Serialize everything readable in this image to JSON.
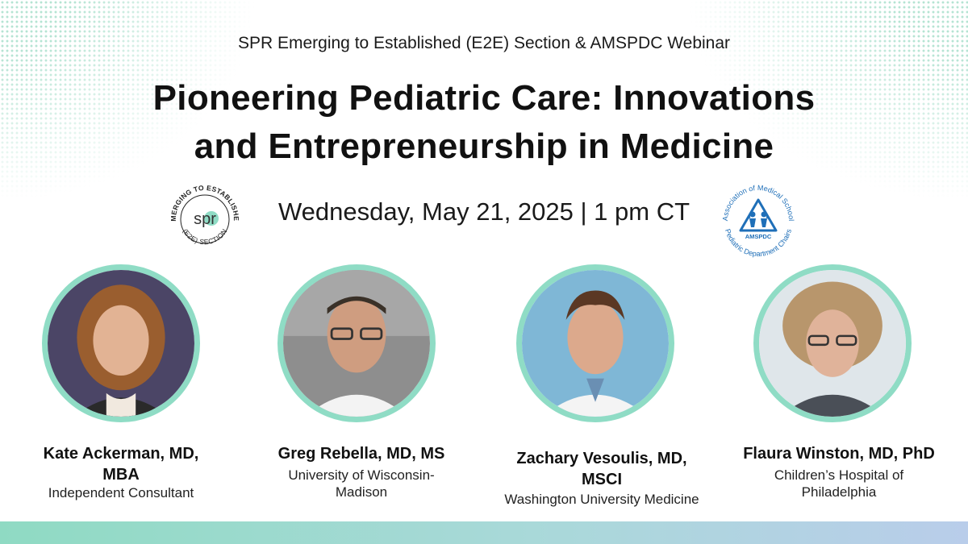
{
  "header": {
    "subtitle": "SPR Emerging to Established (E2E) Section & AMSPDC Webinar",
    "title_line1": "Pioneering Pediatric Care: Innovations",
    "title_line2": "and Entrepreneurship in Medicine",
    "date": "Wednesday, May 21, 2025 | 1 pm CT"
  },
  "logos": {
    "spr": {
      "mark": "spr",
      "arc_top": "EMERGING TO ESTABLISHED",
      "arc_bottom": "(E2E) SECTION"
    },
    "amspdc": {
      "arc_top": "Association of Medical School",
      "arc_bottom": "Pediatric Department Chairs",
      "acronym": "AMSPDC"
    }
  },
  "speakers": [
    {
      "name_line1": "Kate Ackerman, MD,",
      "name_line2": "MBA",
      "affiliation_line1": "Independent Consultant",
      "affiliation_line2": ""
    },
    {
      "name_line1": "Greg Rebella, MD, MS",
      "name_line2": "",
      "affiliation_line1": "University of Wisconsin-",
      "affiliation_line2": "Madison"
    },
    {
      "name_line1": "Zachary Vesoulis, MD,",
      "name_line2": "MSCI",
      "affiliation_line1": "Washington University Medicine",
      "affiliation_line2": ""
    },
    {
      "name_line1": "Flaura Winston, MD, PhD",
      "name_line2": "",
      "affiliation_line1": "Children’s Hospital of",
      "affiliation_line2": "Philadelphia"
    }
  ],
  "colors": {
    "accent_mint": "#8fdcc5",
    "amspdc_blue": "#1f6fb8",
    "text": "#111111"
  }
}
